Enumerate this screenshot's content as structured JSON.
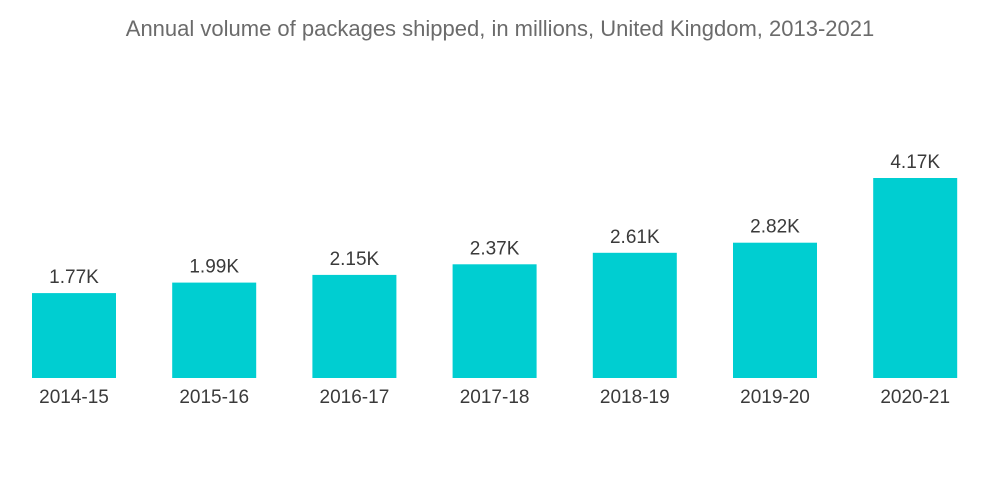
{
  "chart_data": {
    "type": "bar",
    "title": "Annual volume of packages shipped, in millions, United Kingdom, 2013-2021",
    "categories": [
      "2014-15",
      "2015-16",
      "2016-17",
      "2017-18",
      "2018-19",
      "2019-20",
      "2020-21"
    ],
    "values": [
      1770,
      1990,
      2150,
      2370,
      2610,
      2820,
      4170
    ],
    "labels": [
      "1.77K",
      "1.99K",
      "2.15K",
      "2.37K",
      "2.61K",
      "2.82K",
      "4.17K"
    ],
    "xlabel": "",
    "ylabel": "",
    "ylim": [
      0,
      5000
    ],
    "grid": false,
    "color": "#00CED1"
  }
}
